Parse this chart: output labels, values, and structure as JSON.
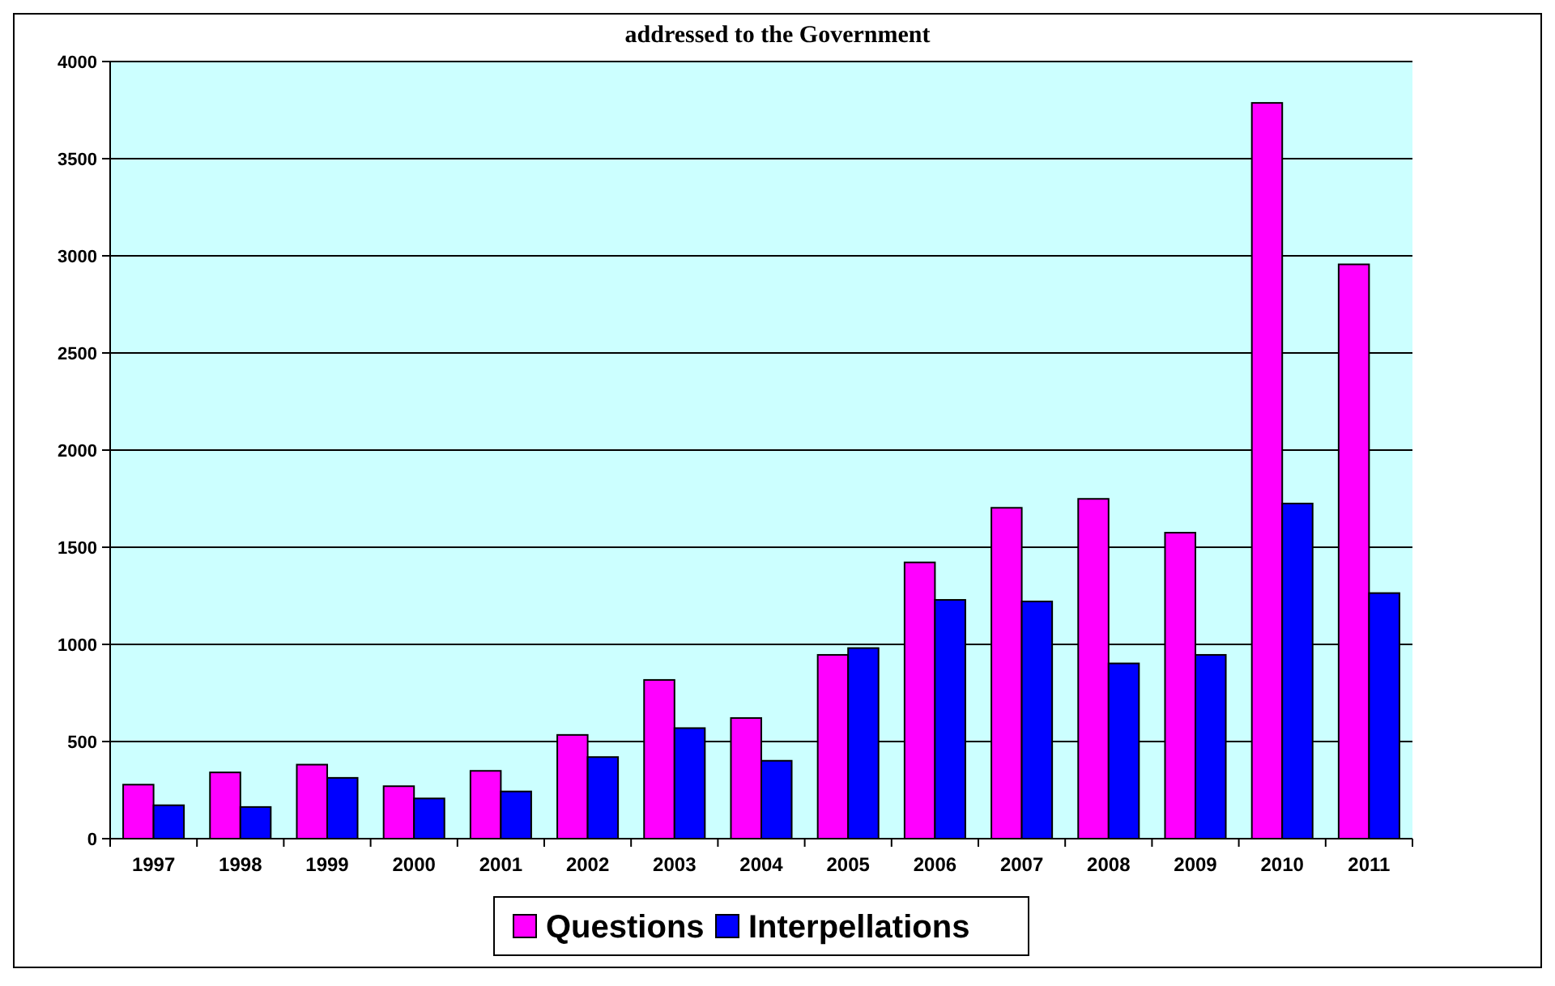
{
  "chart_data": {
    "type": "bar",
    "title": "addressed to the Government",
    "categories": [
      "1997",
      "1998",
      "1999",
      "2000",
      "2001",
      "2002",
      "2003",
      "2004",
      "2005",
      "2006",
      "2007",
      "2008",
      "2009",
      "2010",
      "2011"
    ],
    "series": [
      {
        "name": "Questions",
        "color": "#ff00ff",
        "values": [
          278,
          341,
          381,
          270,
          349,
          534,
          817,
          621,
          946,
          1422,
          1703,
          1749,
          1575,
          3787,
          2956
        ]
      },
      {
        "name": "Interpellations",
        "color": "#0000ff",
        "values": [
          172,
          163,
          313,
          207,
          243,
          420,
          569,
          401,
          981,
          1229,
          1221,
          902,
          946,
          1725,
          1264
        ]
      }
    ],
    "ylim": [
      0,
      4000
    ],
    "yticks": [
      0,
      500,
      1000,
      1500,
      2000,
      2500,
      3000,
      3500,
      4000
    ],
    "grid": "y",
    "legend": "bottom"
  }
}
